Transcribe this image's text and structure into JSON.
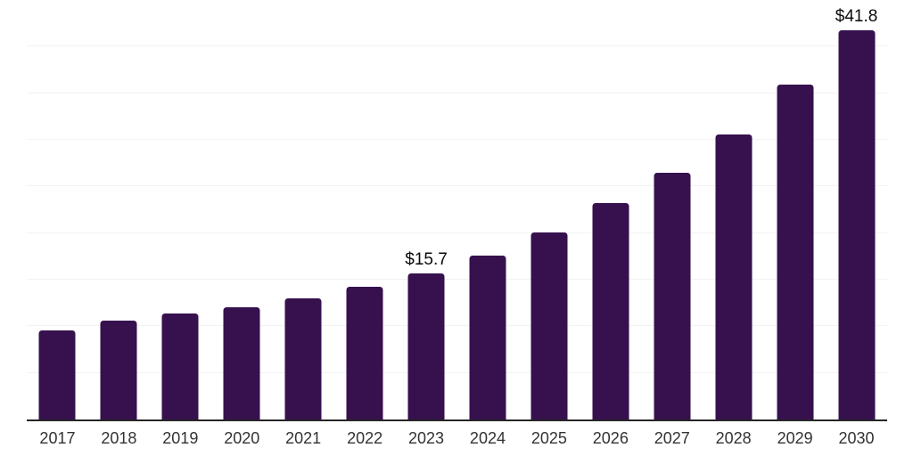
{
  "chart_data": {
    "type": "bar",
    "title": "",
    "xlabel": "",
    "ylabel": "",
    "categories": [
      "2017",
      "2018",
      "2019",
      "2020",
      "2021",
      "2022",
      "2023",
      "2024",
      "2025",
      "2026",
      "2027",
      "2028",
      "2029",
      "2030"
    ],
    "values": [
      9.6,
      10.6,
      11.4,
      12.0,
      13.0,
      14.2,
      15.7,
      17.6,
      20.1,
      23.2,
      26.5,
      30.6,
      35.9,
      41.8
    ],
    "data_labels": [
      "",
      "",
      "",
      "",
      "",
      "",
      "$15.7",
      "",
      "",
      "",
      "",
      "",
      "",
      "$41.8"
    ],
    "ylim": [
      0,
      45
    ],
    "gridline_step": 5,
    "grid": true,
    "legend": "none",
    "colors": {
      "bar": "#36114e",
      "axis": "#262626",
      "tick_label": "#333333",
      "value_label": "#0a0a0a",
      "gridline": "#f2f2f2",
      "background": "#ffffff"
    }
  }
}
